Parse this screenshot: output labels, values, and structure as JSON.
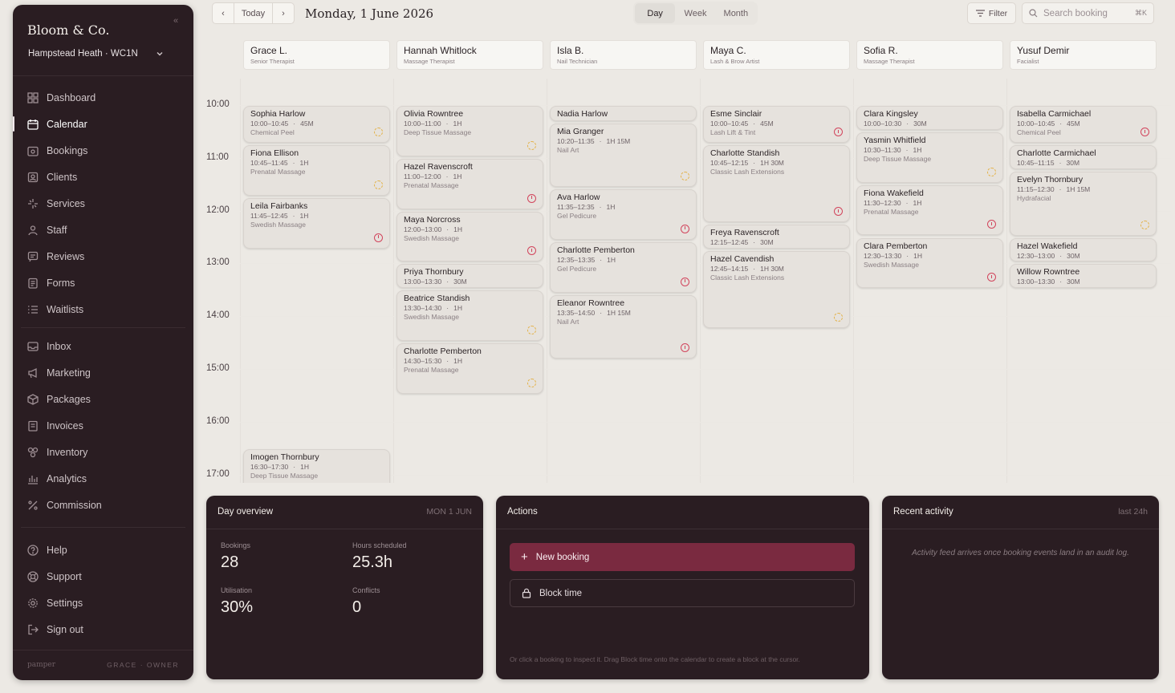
{
  "sidebar": {
    "brand": "Bloom & Co.",
    "collapse_icon": "«",
    "location": "Hampstead Heath · WC1N",
    "groups": [
      [
        {
          "label": "Dashboard",
          "icon": "grid-icon",
          "active": false
        },
        {
          "label": "Calendar",
          "icon": "calendar-icon",
          "active": true
        },
        {
          "label": "Bookings",
          "icon": "bookings-icon",
          "active": false
        },
        {
          "label": "Clients",
          "icon": "clients-icon",
          "active": false
        },
        {
          "label": "Services",
          "icon": "sparkle-icon",
          "active": false
        },
        {
          "label": "Staff",
          "icon": "staff-icon",
          "active": false
        },
        {
          "label": "Reviews",
          "icon": "reviews-icon",
          "active": false
        },
        {
          "label": "Forms",
          "icon": "forms-icon",
          "active": false
        },
        {
          "label": "Waitlists",
          "icon": "waitlist-icon",
          "active": false
        }
      ],
      [
        {
          "label": "Inbox",
          "icon": "inbox-icon",
          "active": false
        },
        {
          "label": "Marketing",
          "icon": "megaphone-icon",
          "active": false
        },
        {
          "label": "Packages",
          "icon": "package-icon",
          "active": false
        },
        {
          "label": "Invoices",
          "icon": "invoice-icon",
          "active": false
        },
        {
          "label": "Inventory",
          "icon": "inventory-icon",
          "active": false
        },
        {
          "label": "Analytics",
          "icon": "chart-icon",
          "active": false
        },
        {
          "label": "Commission",
          "icon": "percent-icon",
          "active": false
        }
      ],
      [
        {
          "label": "Help",
          "icon": "help-icon",
          "active": false
        },
        {
          "label": "Support",
          "icon": "lifebuoy-icon",
          "active": false
        },
        {
          "label": "Settings",
          "icon": "gear-icon",
          "active": false
        },
        {
          "label": "Sign out",
          "icon": "signout-icon",
          "active": false
        }
      ]
    ],
    "footer": {
      "product": "pamper",
      "user": "GRACE · OWNER"
    }
  },
  "header": {
    "prev": "‹",
    "today": "Today",
    "next": "›",
    "date": "Monday, 1 June 2026",
    "views": [
      {
        "label": "Day",
        "active": true
      },
      {
        "label": "Week",
        "active": false
      },
      {
        "label": "Month",
        "active": false
      }
    ],
    "filter": "Filter",
    "search_placeholder": "Search booking",
    "search_kbd": "⌘K"
  },
  "calendar": {
    "times": [
      "10:00",
      "11:00",
      "12:00",
      "13:00",
      "14:00",
      "15:00",
      "16:00",
      "17:00"
    ],
    "staff": [
      {
        "name": "Grace L.",
        "role": "Senior Therapist"
      },
      {
        "name": "Hannah Whitlock",
        "role": "Massage Therapist"
      },
      {
        "name": "Isla B.",
        "role": "Nail Technician"
      },
      {
        "name": "Maya C.",
        "role": "Lash & Brow Artist"
      },
      {
        "name": "Sofia R.",
        "role": "Massage Therapist"
      },
      {
        "name": "Yusuf Demir",
        "role": "Facialist"
      }
    ],
    "appointments": [
      {
        "col": 0,
        "client": "Sophia Harlow",
        "time": "10:00–10:45",
        "dur": "45M",
        "service": "Chemical Peel",
        "status": "pending",
        "start": "10:00",
        "end": "10:45"
      },
      {
        "col": 0,
        "client": "Fiona Ellison",
        "time": "10:45–11:45",
        "dur": "1H",
        "service": "Prenatal Massage",
        "status": "pending",
        "start": "10:45",
        "end": "11:45"
      },
      {
        "col": 0,
        "client": "Leila Fairbanks",
        "time": "11:45–12:45",
        "dur": "1H",
        "service": "Swedish Massage",
        "status": "alert",
        "start": "11:45",
        "end": "12:45"
      },
      {
        "col": 0,
        "client": "Imogen Thornbury",
        "time": "16:30–17:30",
        "dur": "1H",
        "service": "Deep Tissue Massage",
        "status": "pending",
        "start": "16:30",
        "end": "17:30"
      },
      {
        "col": 1,
        "client": "Olivia Rowntree",
        "time": "10:00–11:00",
        "dur": "1H",
        "service": "Deep Tissue Massage",
        "status": "pending",
        "start": "10:00",
        "end": "11:00"
      },
      {
        "col": 1,
        "client": "Hazel Ravenscroft",
        "time": "11:00–12:00",
        "dur": "1H",
        "service": "Prenatal Massage",
        "status": "alert",
        "start": "11:00",
        "end": "12:00"
      },
      {
        "col": 1,
        "client": "Maya Norcross",
        "time": "12:00–13:00",
        "dur": "1H",
        "service": "Swedish Massage",
        "status": "alert",
        "start": "12:00",
        "end": "13:00"
      },
      {
        "col": 1,
        "client": "Priya Thornbury",
        "time": "13:00–13:30",
        "dur": "30M",
        "service": "",
        "status": "",
        "start": "13:00",
        "end": "13:30"
      },
      {
        "col": 1,
        "client": "Beatrice Standish",
        "time": "13:30–14:30",
        "dur": "1H",
        "service": "Swedish Massage",
        "status": "pending",
        "start": "13:30",
        "end": "14:30"
      },
      {
        "col": 1,
        "client": "Charlotte Pemberton",
        "time": "14:30–15:30",
        "dur": "1H",
        "service": "Prenatal Massage",
        "status": "pending",
        "start": "14:30",
        "end": "15:30"
      },
      {
        "col": 2,
        "client": "Nadia Harlow",
        "time": "",
        "dur": "",
        "service": "",
        "status": "",
        "start": "10:00",
        "end": "10:20"
      },
      {
        "col": 2,
        "client": "Mia Granger",
        "time": "10:20–11:35",
        "dur": "1H 15M",
        "service": "Nail Art",
        "status": "pending",
        "start": "10:20",
        "end": "11:35"
      },
      {
        "col": 2,
        "client": "Ava Harlow",
        "time": "11:35–12:35",
        "dur": "1H",
        "service": "Gel Pedicure",
        "status": "alert",
        "start": "11:35",
        "end": "12:35"
      },
      {
        "col": 2,
        "client": "Charlotte Pemberton",
        "time": "12:35–13:35",
        "dur": "1H",
        "service": "Gel Pedicure",
        "status": "alert",
        "start": "12:35",
        "end": "13:35"
      },
      {
        "col": 2,
        "client": "Eleanor Rowntree",
        "time": "13:35–14:50",
        "dur": "1H 15M",
        "service": "Nail Art",
        "status": "alert",
        "start": "13:35",
        "end": "14:50"
      },
      {
        "col": 3,
        "client": "Esme Sinclair",
        "time": "10:00–10:45",
        "dur": "45M",
        "service": "Lash Lift & Tint",
        "status": "alert",
        "start": "10:00",
        "end": "10:45"
      },
      {
        "col": 3,
        "client": "Charlotte Standish",
        "time": "10:45–12:15",
        "dur": "1H 30M",
        "service": "Classic Lash Extensions",
        "status": "alert",
        "start": "10:45",
        "end": "12:15"
      },
      {
        "col": 3,
        "client": "Freya Ravenscroft",
        "time": "12:15–12:45",
        "dur": "30M",
        "service": "",
        "status": "",
        "start": "12:15",
        "end": "12:45"
      },
      {
        "col": 3,
        "client": "Hazel Cavendish",
        "time": "12:45–14:15",
        "dur": "1H 30M",
        "service": "Classic Lash Extensions",
        "status": "pending",
        "start": "12:45",
        "end": "14:15"
      },
      {
        "col": 4,
        "client": "Clara Kingsley",
        "time": "10:00–10:30",
        "dur": "30M",
        "service": "",
        "status": "",
        "start": "10:00",
        "end": "10:30"
      },
      {
        "col": 4,
        "client": "Yasmin Whitfield",
        "time": "10:30–11:30",
        "dur": "1H",
        "service": "Deep Tissue Massage",
        "status": "pending",
        "start": "10:30",
        "end": "11:30"
      },
      {
        "col": 4,
        "client": "Fiona Wakefield",
        "time": "11:30–12:30",
        "dur": "1H",
        "service": "Prenatal Massage",
        "status": "alert",
        "start": "11:30",
        "end": "12:30"
      },
      {
        "col": 4,
        "client": "Clara Pemberton",
        "time": "12:30–13:30",
        "dur": "1H",
        "service": "Swedish Massage",
        "status": "alert",
        "start": "12:30",
        "end": "13:30"
      },
      {
        "col": 5,
        "client": "Isabella Carmichael",
        "time": "10:00–10:45",
        "dur": "45M",
        "service": "Chemical Peel",
        "status": "alert",
        "start": "10:00",
        "end": "10:45"
      },
      {
        "col": 5,
        "client": "Charlotte Carmichael",
        "time": "10:45–11:15",
        "dur": "30M",
        "service": "",
        "status": "",
        "start": "10:45",
        "end": "11:15"
      },
      {
        "col": 5,
        "client": "Evelyn Thornbury",
        "time": "11:15–12:30",
        "dur": "1H 15M",
        "service": "Hydrafacial",
        "status": "pending",
        "start": "11:15",
        "end": "12:30"
      },
      {
        "col": 5,
        "client": "Hazel Wakefield",
        "time": "12:30–13:00",
        "dur": "30M",
        "service": "",
        "status": "",
        "start": "12:30",
        "end": "13:00"
      },
      {
        "col": 5,
        "client": "Willow Rowntree",
        "time": "13:00–13:30",
        "dur": "30M",
        "service": "",
        "status": "",
        "start": "13:00",
        "end": "13:30"
      }
    ]
  },
  "overview": {
    "title": "Day overview",
    "date": "MON 1 JUN",
    "bookings_label": "Bookings",
    "bookings": "28",
    "hours_label": "Hours scheduled",
    "hours": "25.3h",
    "util_label": "Utilisation",
    "util": "30%",
    "conflicts_label": "Conflicts",
    "conflicts": "0"
  },
  "actions": {
    "title": "Actions",
    "new_booking": "New booking",
    "block_time": "Block time",
    "hint": "Or click a booking to inspect it. Drag Block time onto the calendar to create a block at the cursor."
  },
  "activity": {
    "title": "Recent activity",
    "range": "last 24h",
    "empty": "Activity feed arrives once booking events land in an audit log."
  },
  "colors": {
    "sidebar": "#2a1d22",
    "accent": "#7a2a40",
    "alert": "#d2445c",
    "pending": "#e3b24a"
  }
}
